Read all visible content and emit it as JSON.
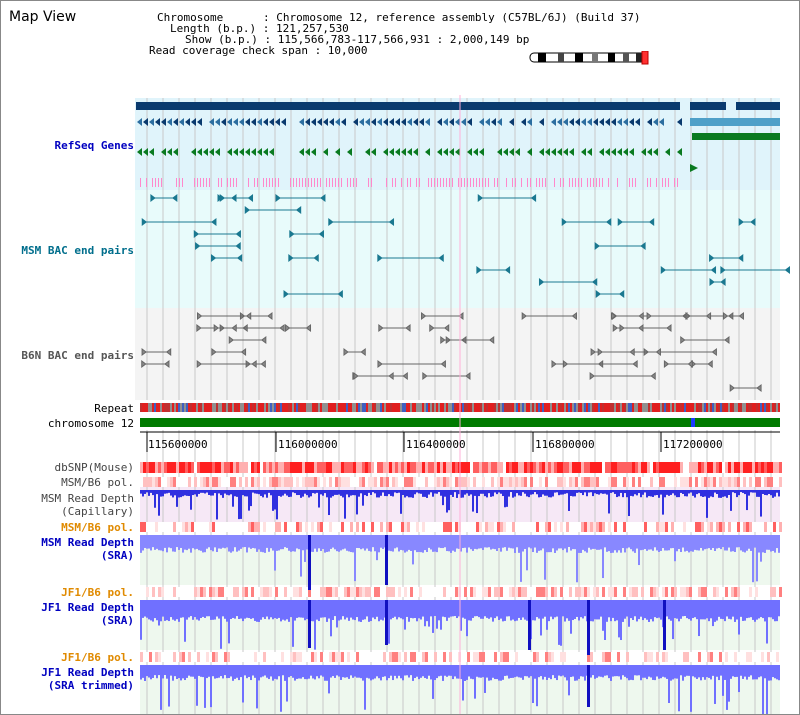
{
  "page": {
    "title": "Map View"
  },
  "info": {
    "chromosome_label": "Chromosome      : Chromosome 12, reference assembly (C57BL/6J) (Build 37)",
    "length_label": "Length (b.p.) : 121,257,530",
    "show_label": "Show (b.p.) : 115,566,783-117,566,931 : 2,000,149 bp",
    "coverage_label": "Read coverage check span : 10,000"
  },
  "tracks": {
    "refseq": "RefSeq Genes",
    "msm_bac": "MSM BAC end pairs",
    "b6n_bac": "B6N BAC end pairs",
    "repeat": "Repeat",
    "chromosome": "chromosome 12",
    "dbsnp": "dbSNP(Mouse)",
    "msm_b6_pol_1": "MSM/B6 pol.",
    "msm_read_depth_cap": "MSM Read Depth\n(Capillary)",
    "msm_b6_pol_2": "MSM/B6 pol.",
    "msm_read_depth_sra": "MSM Read Depth\n(SRA)",
    "jf1_b6_pol_1": "JF1/B6 pol.",
    "jf1_read_depth_sra": "JF1 Read Depth\n(SRA)",
    "jf1_b6_pol_2": "JF1/B6 pol.",
    "jf1_read_depth_trim": "JF1 Read Depth\n(SRA trimmed)"
  },
  "ruler": {
    "ticks": [
      "115600000",
      "116000000",
      "116400000",
      "116800000",
      "117200000"
    ]
  },
  "colors": {
    "gene_dark": "#0a3a6e",
    "gene_mid": "#2c6ea0",
    "gene_light": "#4fa0c8",
    "gene_green": "#0a7a20",
    "gene_pink": "#ff88cc",
    "bac_teal": "#1a7890",
    "bac_gray": "#666666",
    "chrom_green": "#007a00",
    "depth_blue": "#3030e0",
    "depth_light": "#8888ff",
    "snp_red": "#ff2020"
  }
}
